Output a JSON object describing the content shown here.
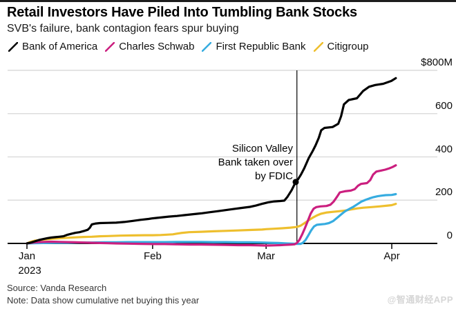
{
  "header": {
    "title": "Retail Investors Have Piled Into Tumbling Bank Stocks",
    "subtitle": "SVB's failure, bank contagion fears spur buying"
  },
  "legend": {
    "items": [
      {
        "label": "Bank of America",
        "color": "#000000"
      },
      {
        "label": "Charles Schwab",
        "color": "#cb1f7f"
      },
      {
        "label": "First Republic Bank",
        "color": "#36ace0"
      },
      {
        "label": "Citigroup",
        "color": "#eebf2e"
      }
    ]
  },
  "chart_data": {
    "type": "line",
    "title": "Retail Investors Have Piled Into Tumbling Bank Stocks",
    "subtitle": "SVB's failure, bank contagion fears spur buying",
    "x_unit": "days since Jan 1 2023",
    "y_unit": "cumulative net buying, $M",
    "xlim": [
      0,
      91
    ],
    "ylim": [
      0,
      800
    ],
    "grid": "horizontal",
    "legend_position": "top",
    "yticks": {
      "values": [
        800,
        600,
        400,
        200,
        0
      ],
      "labels": [
        "$800M",
        "600",
        "400",
        "200",
        "0"
      ]
    },
    "xticks": {
      "values": [
        0,
        31,
        59,
        90
      ],
      "labels": [
        "Jan",
        "Feb",
        "Mar",
        "Apr"
      ],
      "year_label": "2023"
    },
    "annotation": {
      "lines": [
        "Silicon Valley",
        "Bank taken over",
        "by FDIC"
      ],
      "event_day": 66.6,
      "marker": {
        "series": "Bank of America",
        "day": 66.3,
        "value": 284
      }
    },
    "series": [
      {
        "name": "Citigroup",
        "color": "#eebf2e",
        "points": [
          [
            0,
            0
          ],
          [
            1,
            8
          ],
          [
            2,
            13
          ],
          [
            4,
            18
          ],
          [
            6,
            21
          ],
          [
            8,
            24
          ],
          [
            10,
            26
          ],
          [
            12,
            28
          ],
          [
            14,
            30
          ],
          [
            16,
            31
          ],
          [
            18,
            33
          ],
          [
            20,
            34
          ],
          [
            23,
            36
          ],
          [
            26,
            37
          ],
          [
            29,
            38
          ],
          [
            31,
            38
          ],
          [
            33,
            39
          ],
          [
            36,
            42
          ],
          [
            38,
            48
          ],
          [
            40,
            52
          ],
          [
            43,
            54
          ],
          [
            46,
            56
          ],
          [
            49,
            58
          ],
          [
            52,
            60
          ],
          [
            55,
            62
          ],
          [
            58,
            64
          ],
          [
            59,
            66
          ],
          [
            61,
            68
          ],
          [
            63,
            70
          ],
          [
            65,
            73
          ],
          [
            66.5,
            76
          ],
          [
            67.5,
            82
          ],
          [
            68.5,
            94
          ],
          [
            69.5,
            107
          ],
          [
            70.5,
            119
          ],
          [
            71.5,
            129
          ],
          [
            72.5,
            137
          ],
          [
            74,
            143
          ],
          [
            75.5,
            146
          ],
          [
            77,
            149
          ],
          [
            78.5,
            152
          ],
          [
            80,
            157
          ],
          [
            81.5,
            162
          ],
          [
            83,
            165
          ],
          [
            85,
            168
          ],
          [
            87,
            171
          ],
          [
            89,
            175
          ],
          [
            90,
            177
          ],
          [
            91,
            183
          ]
        ]
      },
      {
        "name": "First Republic Bank",
        "color": "#36ace0",
        "points": [
          [
            0,
            0
          ],
          [
            2,
            1
          ],
          [
            4,
            2
          ],
          [
            7,
            3
          ],
          [
            10,
            3
          ],
          [
            13,
            4
          ],
          [
            16,
            4
          ],
          [
            19,
            5
          ],
          [
            22,
            5
          ],
          [
            25,
            6
          ],
          [
            28,
            6
          ],
          [
            31,
            6
          ],
          [
            34,
            6
          ],
          [
            37,
            7
          ],
          [
            40,
            7
          ],
          [
            43,
            7
          ],
          [
            46,
            6
          ],
          [
            49,
            6
          ],
          [
            52,
            5
          ],
          [
            55,
            5
          ],
          [
            58,
            4
          ],
          [
            60,
            3
          ],
          [
            62,
            2
          ],
          [
            64,
            0
          ],
          [
            65.5,
            -1
          ],
          [
            66.5,
            -2
          ],
          [
            67.5,
            -2
          ],
          [
            68,
            2
          ],
          [
            68.7,
            15
          ],
          [
            69.4,
            37
          ],
          [
            70.1,
            60
          ],
          [
            70.8,
            78
          ],
          [
            71.5,
            86
          ],
          [
            72.5,
            88
          ],
          [
            73.5,
            90
          ],
          [
            74.5,
            94
          ],
          [
            75.5,
            103
          ],
          [
            76.5,
            118
          ],
          [
            77.5,
            134
          ],
          [
            78.5,
            149
          ],
          [
            79.5,
            159
          ],
          [
            80.5,
            169
          ],
          [
            81.5,
            181
          ],
          [
            82.5,
            193
          ],
          [
            83.5,
            201
          ],
          [
            84.5,
            208
          ],
          [
            85.5,
            214
          ],
          [
            86.5,
            218
          ],
          [
            87.5,
            221
          ],
          [
            88.5,
            223
          ],
          [
            90,
            224
          ],
          [
            91,
            228
          ]
        ]
      },
      {
        "name": "Charles Schwab",
        "color": "#cb1f7f",
        "points": [
          [
            0,
            0
          ],
          [
            1,
            3
          ],
          [
            2,
            5
          ],
          [
            4,
            7
          ],
          [
            6,
            8
          ],
          [
            8,
            7
          ],
          [
            10,
            6
          ],
          [
            12,
            5
          ],
          [
            14,
            4
          ],
          [
            16,
            3
          ],
          [
            18,
            2
          ],
          [
            20,
            1
          ],
          [
            22,
            0
          ],
          [
            25,
            -1
          ],
          [
            28,
            -2
          ],
          [
            31,
            -3
          ],
          [
            34,
            -3
          ],
          [
            37,
            -4
          ],
          [
            40,
            -5
          ],
          [
            43,
            -5
          ],
          [
            46,
            -6
          ],
          [
            49,
            -7
          ],
          [
            52,
            -8
          ],
          [
            55,
            -8
          ],
          [
            57,
            -9
          ],
          [
            59,
            -10
          ],
          [
            61,
            -9
          ],
          [
            62.5,
            -8
          ],
          [
            63.5,
            -7
          ],
          [
            64.5,
            -6
          ],
          [
            65.3,
            -5
          ],
          [
            66,
            -4
          ],
          [
            66.6,
            2
          ],
          [
            67.2,
            16
          ],
          [
            67.9,
            42
          ],
          [
            68.6,
            72
          ],
          [
            69.3,
            105
          ],
          [
            70,
            138
          ],
          [
            70.7,
            160
          ],
          [
            71.4,
            168
          ],
          [
            72.4,
            171
          ],
          [
            73.9,
            173
          ],
          [
            74.9,
            179
          ],
          [
            75.7,
            194
          ],
          [
            76.4,
            213
          ],
          [
            77.2,
            236
          ],
          [
            78.4,
            241
          ],
          [
            79.9,
            244
          ],
          [
            80.9,
            251
          ],
          [
            81.7,
            267
          ],
          [
            82.4,
            275
          ],
          [
            83.9,
            279
          ],
          [
            84.7,
            293
          ],
          [
            85.4,
            318
          ],
          [
            86.2,
            332
          ],
          [
            87.4,
            337
          ],
          [
            88.4,
            341
          ],
          [
            89.4,
            347
          ],
          [
            90.2,
            353
          ],
          [
            91,
            361
          ]
        ]
      },
      {
        "name": "Bank of America",
        "color": "#000000",
        "points": [
          [
            0,
            0
          ],
          [
            1,
            4
          ],
          [
            2,
            10
          ],
          [
            3,
            16
          ],
          [
            4,
            20
          ],
          [
            5,
            24
          ],
          [
            6,
            27
          ],
          [
            7,
            29
          ],
          [
            8,
            31
          ],
          [
            9,
            33
          ],
          [
            10,
            40
          ],
          [
            11,
            45
          ],
          [
            12,
            49
          ],
          [
            13,
            52
          ],
          [
            14,
            57
          ],
          [
            15,
            63
          ],
          [
            15.5,
            72
          ],
          [
            16,
            88
          ],
          [
            17,
            92
          ],
          [
            18,
            94
          ],
          [
            20,
            95
          ],
          [
            22,
            96
          ],
          [
            24,
            99
          ],
          [
            26,
            104
          ],
          [
            28,
            109
          ],
          [
            30,
            113
          ],
          [
            31,
            116
          ],
          [
            33,
            120
          ],
          [
            35,
            124
          ],
          [
            37,
            127
          ],
          [
            39,
            131
          ],
          [
            41,
            135
          ],
          [
            43,
            139
          ],
          [
            45,
            144
          ],
          [
            47,
            149
          ],
          [
            49,
            154
          ],
          [
            51,
            159
          ],
          [
            53,
            164
          ],
          [
            55,
            169
          ],
          [
            56.5,
            175
          ],
          [
            58,
            183
          ],
          [
            59.5,
            190
          ],
          [
            61,
            194
          ],
          [
            62.5,
            196
          ],
          [
            63.5,
            198
          ],
          [
            64.3,
            216
          ],
          [
            65.3,
            246
          ],
          [
            66.3,
            284
          ],
          [
            66.9,
            297
          ],
          [
            67.6,
            318
          ],
          [
            68.4,
            347
          ],
          [
            69.5,
            394
          ],
          [
            70.5,
            427
          ],
          [
            71.2,
            453
          ],
          [
            72,
            488
          ],
          [
            72.6,
            523
          ],
          [
            73.4,
            534
          ],
          [
            75.4,
            538
          ],
          [
            76.8,
            553
          ],
          [
            77.5,
            588
          ],
          [
            78.2,
            643
          ],
          [
            79.4,
            663
          ],
          [
            81.4,
            671
          ],
          [
            82.9,
            704
          ],
          [
            84.4,
            724
          ],
          [
            85.9,
            732
          ],
          [
            87.9,
            738
          ],
          [
            89.9,
            751
          ],
          [
            91,
            764
          ]
        ]
      }
    ]
  },
  "footer": {
    "source": "Source: Vanda Research",
    "note": "Note: Data show cumulative net buying this year",
    "watermark": "@智通财经APP"
  }
}
